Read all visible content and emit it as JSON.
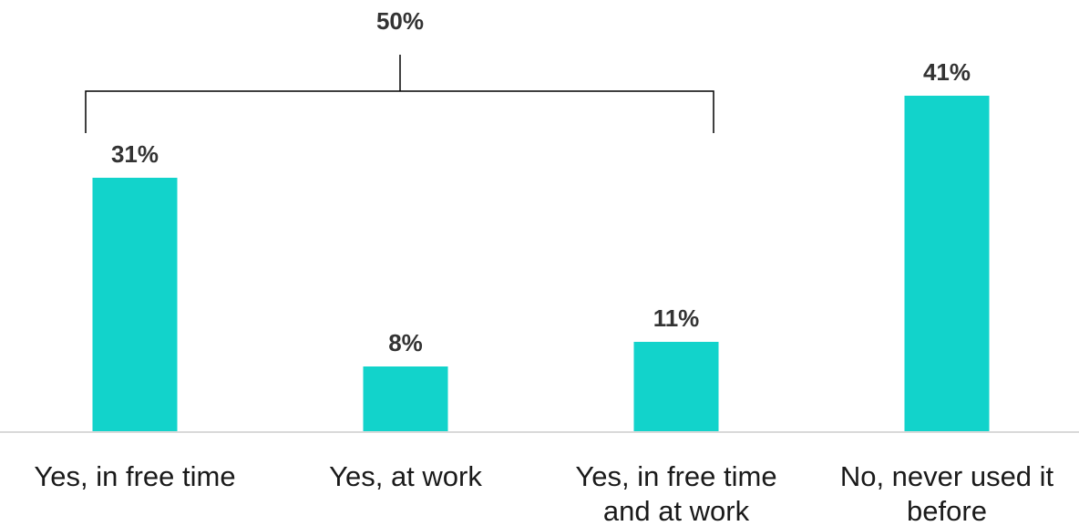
{
  "chart_data": {
    "type": "bar",
    "categories": [
      [
        "Yes, in free time"
      ],
      [
        "Yes, at work"
      ],
      [
        "Yes, in free time",
        "and at work"
      ],
      [
        "No, never used it",
        "before"
      ]
    ],
    "values": [
      31,
      8,
      11,
      41
    ],
    "value_labels": [
      "31%",
      "8%",
      "11%",
      "41%"
    ],
    "ylim": [
      0,
      45
    ],
    "bar_color": "#12D3CB",
    "grid": false,
    "bracket": {
      "label": "50%",
      "from_category": 0,
      "to_category": 2
    }
  }
}
